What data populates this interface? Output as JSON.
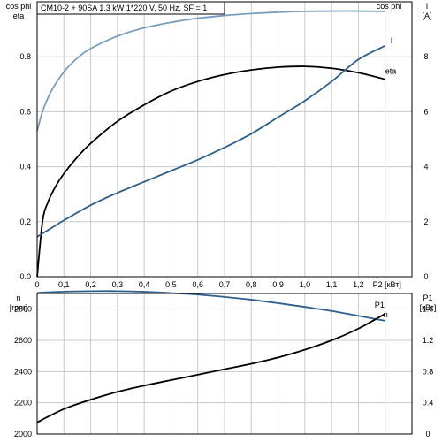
{
  "chart_data": [
    {
      "type": "line",
      "title": "CM10-2 + 90SA   1.3 kW   1*220 V, 50 Hz, SF = 1",
      "xlabel": "P2 [кВт]",
      "ylabel_left_line1": "cos phi",
      "ylabel_left_line2": "eta",
      "ylabel_right_line1": "I",
      "ylabel_right_line2": "[A]",
      "xlim": [
        0,
        1.4
      ],
      "ylim_left": [
        0,
        1.0
      ],
      "ylim_right": [
        0,
        10
      ],
      "x_ticks": [
        "0",
        "0,1",
        "0,2",
        "0,3",
        "0,4",
        "0,5",
        "0,6",
        "0,7",
        "0,8",
        "0,9",
        "1,0",
        "1,1",
        "1,2"
      ],
      "yleft_ticks": [
        "0.0",
        "0.2",
        "0.4",
        "0.6",
        "0.8"
      ],
      "yright_ticks": [
        "0",
        "2",
        "4",
        "6",
        "8"
      ],
      "grid": true,
      "series": [
        {
          "name": "cos phi",
          "axis": "left",
          "color": "#7a9dbd",
          "x": [
            0,
            0.02,
            0.05,
            0.1,
            0.15,
            0.2,
            0.3,
            0.4,
            0.5,
            0.6,
            0.7,
            0.8,
            0.9,
            1.0,
            1.1,
            1.2,
            1.3
          ],
          "y": [
            0.53,
            0.6,
            0.67,
            0.745,
            0.795,
            0.83,
            0.875,
            0.905,
            0.925,
            0.94,
            0.95,
            0.957,
            0.962,
            0.965,
            0.966,
            0.966,
            0.965
          ]
        },
        {
          "name": "eta",
          "axis": "left",
          "color": "#000000",
          "x": [
            0,
            0.02,
            0.04,
            0.07,
            0.1,
            0.15,
            0.2,
            0.3,
            0.4,
            0.5,
            0.6,
            0.7,
            0.8,
            0.9,
            1.0,
            1.1,
            1.2,
            1.3
          ],
          "y": [
            0,
            0.2,
            0.27,
            0.33,
            0.375,
            0.435,
            0.485,
            0.565,
            0.625,
            0.675,
            0.71,
            0.735,
            0.752,
            0.762,
            0.765,
            0.758,
            0.742,
            0.718
          ]
        },
        {
          "name": "I",
          "axis": "right",
          "color": "#2e5f8a",
          "x": [
            0,
            0.05,
            0.1,
            0.2,
            0.3,
            0.4,
            0.5,
            0.6,
            0.7,
            0.8,
            0.9,
            1.0,
            1.1,
            1.2,
            1.3
          ],
          "y": [
            1.45,
            1.75,
            2.05,
            2.6,
            3.05,
            3.45,
            3.85,
            4.25,
            4.7,
            5.2,
            5.8,
            6.4,
            7.1,
            7.9,
            8.4
          ]
        }
      ]
    },
    {
      "type": "line",
      "xlabel": "",
      "ylabel_left_line1": "n",
      "ylabel_left_line2": "[rpm]",
      "ylabel_right_line1": "P1",
      "ylabel_right_line2": "[кВт]",
      "xlim": [
        0,
        1.4
      ],
      "ylim_left": [
        2000,
        2900
      ],
      "ylim_right": [
        0,
        1.8
      ],
      "yleft_ticks": [
        "2000",
        "2200",
        "2400",
        "2600",
        "2800"
      ],
      "yright_ticks": [
        "0",
        "0.4",
        "0.8",
        "1.2",
        "1.6"
      ],
      "grid": true,
      "series": [
        {
          "name": "n",
          "axis": "left",
          "color": "#2e5f8a",
          "x": [
            0,
            0.1,
            0.2,
            0.3,
            0.4,
            0.5,
            0.6,
            0.7,
            0.8,
            0.9,
            1.0,
            1.1,
            1.2,
            1.3
          ],
          "y": [
            2905,
            2912,
            2915,
            2915,
            2911,
            2903,
            2893,
            2878,
            2860,
            2838,
            2814,
            2788,
            2757,
            2725
          ]
        },
        {
          "name": "P1",
          "axis": "right",
          "color": "#000000",
          "x": [
            0,
            0.1,
            0.2,
            0.3,
            0.4,
            0.5,
            0.6,
            0.7,
            0.8,
            0.9,
            1.0,
            1.1,
            1.2,
            1.3
          ],
          "y": [
            0.15,
            0.32,
            0.44,
            0.54,
            0.62,
            0.69,
            0.76,
            0.83,
            0.9,
            0.98,
            1.08,
            1.2,
            1.35,
            1.54
          ]
        }
      ]
    }
  ]
}
